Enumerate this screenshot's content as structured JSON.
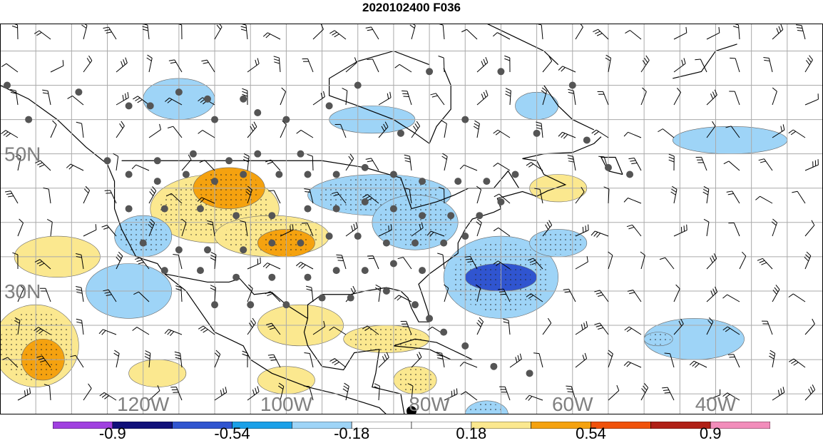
{
  "title": "2020102400 F036",
  "map": {
    "lat_labels": [
      {
        "text": "50N",
        "lat": 50
      },
      {
        "text": "30N",
        "lat": 30
      }
    ],
    "lon_labels": [
      {
        "text": "120W",
        "lon": -120
      },
      {
        "text": "100W",
        "lon": -100
      },
      {
        "text": "80W",
        "lon": -80
      },
      {
        "text": "60W",
        "lon": -60
      },
      {
        "text": "40W",
        "lon": -40
      }
    ],
    "extent": {
      "lon_min": -140,
      "lon_max": -25,
      "lat_min": 12,
      "lat_max": 69
    },
    "grid": true,
    "highlight_point": {
      "lon": -82.5,
      "lat": 12.5
    },
    "station_points": [
      [
        -139,
        60
      ],
      [
        -129,
        59
      ],
      [
        -136,
        55
      ],
      [
        -122,
        57
      ],
      [
        -119,
        57
      ],
      [
        -115,
        59
      ],
      [
        -111,
        58
      ],
      [
        -110,
        55
      ],
      [
        -106,
        58
      ],
      [
        -104,
        56
      ],
      [
        -100,
        55
      ],
      [
        -94,
        57
      ],
      [
        -125,
        49
      ],
      [
        -118,
        49
      ],
      [
        -113,
        50
      ],
      [
        -108,
        49
      ],
      [
        -104,
        50
      ],
      [
        -98,
        50
      ],
      [
        -122,
        47
      ],
      [
        -118,
        46
      ],
      [
        -114,
        47
      ],
      [
        -110,
        46
      ],
      [
        -106,
        47
      ],
      [
        -101,
        47
      ],
      [
        -97,
        47
      ],
      [
        -93,
        47
      ],
      [
        -89,
        48
      ],
      [
        -85,
        47
      ],
      [
        -81,
        46
      ],
      [
        -76,
        46
      ],
      [
        -72,
        46
      ],
      [
        -68,
        47
      ],
      [
        -122,
        42
      ],
      [
        -117,
        42
      ],
      [
        -112,
        42
      ],
      [
        -107,
        41
      ],
      [
        -102,
        41
      ],
      [
        -97,
        42
      ],
      [
        -93,
        42
      ],
      [
        -89,
        43
      ],
      [
        -85,
        42
      ],
      [
        -81,
        41
      ],
      [
        -77,
        41
      ],
      [
        -73,
        41
      ],
      [
        -70,
        43
      ],
      [
        -120,
        37
      ],
      [
        -115,
        36
      ],
      [
        -111,
        36
      ],
      [
        -106,
        36
      ],
      [
        -102,
        37
      ],
      [
        -98,
        37
      ],
      [
        -94,
        38
      ],
      [
        -90,
        38
      ],
      [
        -86,
        37
      ],
      [
        -82,
        37
      ],
      [
        -78,
        37
      ],
      [
        -75,
        38
      ],
      [
        -117,
        33
      ],
      [
        -112,
        33
      ],
      [
        -107,
        32
      ],
      [
        -102,
        32
      ],
      [
        -97,
        32
      ],
      [
        -93,
        33
      ],
      [
        -89,
        33
      ],
      [
        -85,
        34
      ],
      [
        -81,
        33
      ],
      [
        -110,
        28
      ],
      [
        -105,
        28
      ],
      [
        -100,
        28
      ],
      [
        -95,
        29
      ],
      [
        -91,
        29
      ],
      [
        -86,
        30
      ],
      [
        -82,
        28
      ],
      [
        -80,
        26
      ],
      [
        -78,
        24
      ],
      [
        -75,
        22
      ],
      [
        -71,
        19
      ],
      [
        -66,
        18
      ],
      [
        -90,
        60
      ],
      [
        -80,
        62
      ],
      [
        -70,
        62
      ],
      [
        -60,
        60
      ],
      [
        -84,
        53
      ],
      [
        -75,
        55
      ],
      [
        -65,
        53
      ],
      [
        -58,
        52
      ],
      [
        -55,
        48
      ],
      [
        -52,
        47
      ]
    ],
    "anomaly_regions": [
      {
        "lon": -110,
        "lat": 42,
        "rx": 9,
        "ry": 5,
        "level": 0.3
      },
      {
        "lon": -102,
        "lat": 38,
        "rx": 8,
        "ry": 3,
        "level": 0.35
      },
      {
        "lon": -108,
        "lat": 45,
        "rx": 5,
        "ry": 3,
        "level": 0.45
      },
      {
        "lon": -100,
        "lat": 37,
        "rx": 4,
        "ry": 2,
        "level": 0.45
      },
      {
        "lon": -132,
        "lat": 35,
        "rx": 6,
        "ry": 3,
        "level": 0.25
      },
      {
        "lon": -135,
        "lat": 22,
        "rx": 6,
        "ry": 6,
        "level": 0.3
      },
      {
        "lon": -134,
        "lat": 20,
        "rx": 3,
        "ry": 3,
        "level": 0.45
      },
      {
        "lon": -86,
        "lat": 23,
        "rx": 6,
        "ry": 2,
        "level": 0.3
      },
      {
        "lon": -98,
        "lat": 25,
        "rx": 6,
        "ry": 3,
        "level": 0.2
      },
      {
        "lon": -82,
        "lat": 17,
        "rx": 3,
        "ry": 2,
        "level": 0.3
      },
      {
        "lon": -62,
        "lat": 45,
        "rx": 4,
        "ry": 2,
        "level": 0.25
      },
      {
        "lon": -118,
        "lat": 18,
        "rx": 4,
        "ry": 2,
        "level": 0.2
      },
      {
        "lon": -100,
        "lat": 17,
        "rx": 4,
        "ry": 2,
        "level": 0.25
      },
      {
        "lon": -87,
        "lat": 44,
        "rx": 10,
        "ry": 3,
        "level": -0.3
      },
      {
        "lon": -82,
        "lat": 40,
        "rx": 6,
        "ry": 4,
        "level": -0.35
      },
      {
        "lon": -70,
        "lat": 32,
        "rx": 8,
        "ry": 6,
        "level": -0.35
      },
      {
        "lon": -70,
        "lat": 32,
        "rx": 5,
        "ry": 2,
        "level": -0.6
      },
      {
        "lon": -120,
        "lat": 38,
        "rx": 4,
        "ry": 3,
        "level": -0.3
      },
      {
        "lon": -115,
        "lat": 58,
        "rx": 5,
        "ry": 3,
        "level": -0.2
      },
      {
        "lon": -88,
        "lat": 55,
        "rx": 6,
        "ry": 2,
        "level": -0.2
      },
      {
        "lon": -65,
        "lat": 57,
        "rx": 3,
        "ry": 2,
        "level": -0.25
      },
      {
        "lon": -43,
        "lat": 23,
        "rx": 7,
        "ry": 3,
        "level": -0.2
      },
      {
        "lon": -48,
        "lat": 23,
        "rx": 2,
        "ry": 1,
        "level": -0.35
      },
      {
        "lon": -38,
        "lat": 52,
        "rx": 8,
        "ry": 2,
        "level": -0.2
      },
      {
        "lon": -62,
        "lat": 37,
        "rx": 4,
        "ry": 2,
        "level": -0.3
      },
      {
        "lon": -122,
        "lat": 30,
        "rx": 6,
        "ry": 4,
        "level": -0.2
      },
      {
        "lon": -72,
        "lat": 12,
        "rx": 3,
        "ry": 2,
        "level": -0.3
      }
    ]
  },
  "colorbar": {
    "segments": [
      "#a040e0",
      "#10107a",
      "#3055d0",
      "#1aa0e8",
      "#9ed4f7",
      "#ffffff",
      "#ffffff",
      "#fbe88f",
      "#f5a20f",
      "#f0520a",
      "#b02016",
      "#f28dbb"
    ],
    "labels": [
      {
        "text": "-0.9",
        "index": 1
      },
      {
        "text": "-0.54",
        "index": 3
      },
      {
        "text": "-0.18",
        "index": 5
      },
      {
        "text": "0.18",
        "index": 7
      },
      {
        "text": "0.54",
        "index": 9
      },
      {
        "text": "0.9",
        "index": 11
      }
    ]
  }
}
